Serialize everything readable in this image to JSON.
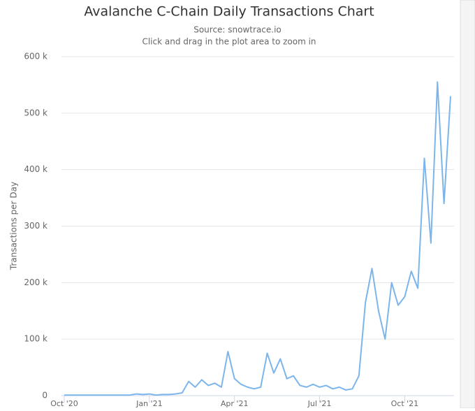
{
  "chart_data": {
    "type": "line",
    "title": "Avalanche C-Chain Daily Transactions Chart",
    "subtitle": "Source: snowtrace.io",
    "annotation": "Click and drag in the plot area to zoom in",
    "y_label": "Transactions per Day",
    "categories": [
      "Oct '20",
      null,
      null,
      null,
      null,
      null,
      null,
      null,
      null,
      null,
      null,
      null,
      null,
      "Jan '21",
      null,
      null,
      null,
      null,
      null,
      null,
      null,
      null,
      null,
      null,
      null,
      null,
      "Apr '21",
      null,
      null,
      null,
      null,
      null,
      null,
      null,
      null,
      null,
      null,
      null,
      null,
      "Jul '21",
      null,
      null,
      null,
      null,
      null,
      null,
      null,
      null,
      null,
      null,
      null,
      null,
      "Oct '21",
      null,
      null,
      null,
      null,
      null,
      null,
      null
    ],
    "series": [
      {
        "name": "Transactions per Day",
        "color": "#7cb5ec",
        "values": [
          1000,
          1000,
          1000,
          1000,
          1000,
          1000,
          1000,
          1000,
          1000,
          1000,
          1000,
          3000,
          2000,
          3000,
          1000,
          2000,
          2000,
          3000,
          5000,
          25000,
          15000,
          28000,
          18000,
          22000,
          15000,
          78000,
          30000,
          20000,
          15000,
          12000,
          15000,
          75000,
          40000,
          65000,
          30000,
          35000,
          18000,
          15000,
          20000,
          15000,
          18000,
          12000,
          15000,
          10000,
          12000,
          35000,
          165000,
          225000,
          150000,
          100000,
          200000,
          160000,
          175000,
          220000,
          190000,
          420000,
          270000,
          555000,
          340000,
          530000
        ]
      }
    ],
    "ylim": [
      0,
      600000
    ],
    "yticks": [
      0,
      {
        "value": 100000,
        "label": "100 k"
      },
      {
        "value": 200000,
        "label": "200 k"
      },
      {
        "value": 300000,
        "label": "300 k"
      },
      {
        "value": 400000,
        "label": "400 k"
      },
      {
        "value": 500000,
        "label": "500 k"
      },
      {
        "value": 600000,
        "label": "600 k"
      }
    ],
    "grid": true
  }
}
